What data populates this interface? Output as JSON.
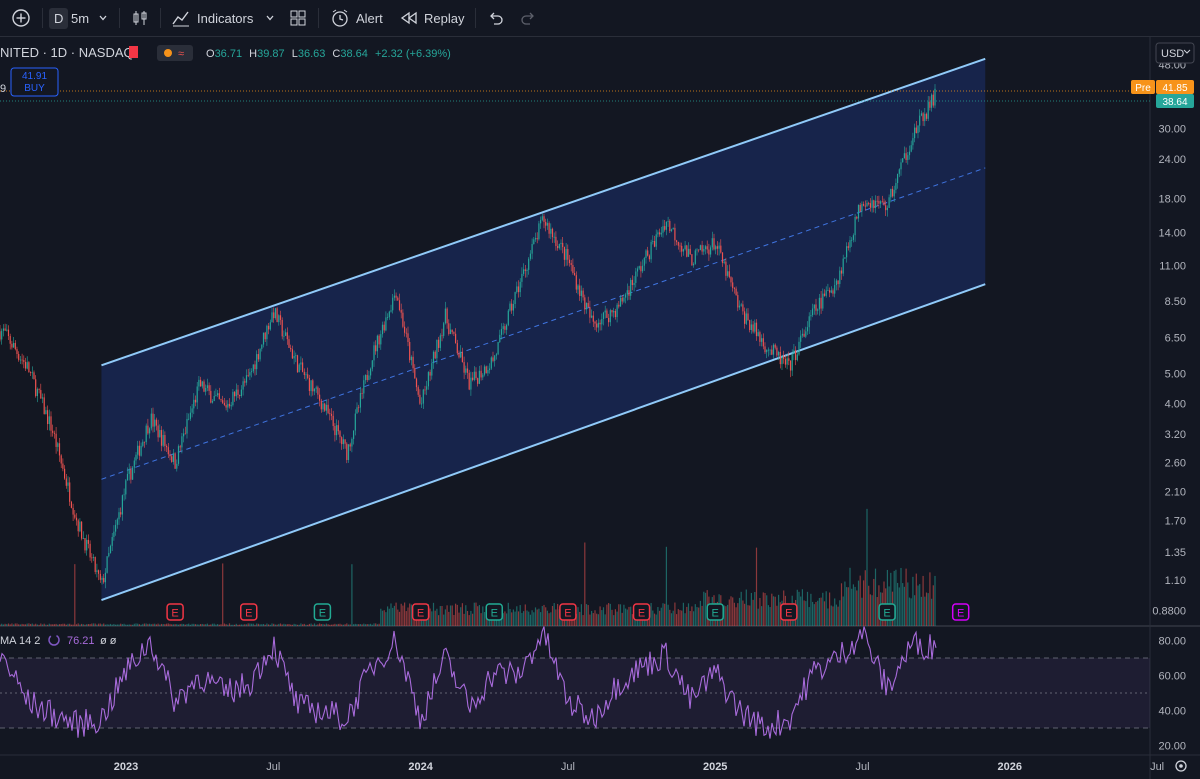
{
  "toolbar": {
    "interval_D": "D",
    "interval_5m": "5m",
    "indicators_label": "Indicators",
    "alert_label": "Alert",
    "replay_label": "Replay"
  },
  "legend": {
    "symbol": "NITED · 1D · NASDAQ",
    "open_label": "O",
    "open": "36.71",
    "high_label": "H",
    "high": "39.87",
    "low_label": "L",
    "low": "36.63",
    "close_label": "C",
    "close": "38.64",
    "change": "+2.32 (+6.39%)",
    "left_edge_char": "9"
  },
  "trade": {
    "price": "41.91",
    "label": "BUY"
  },
  "currency": "USD",
  "price_tags": {
    "pre_label": "Pre",
    "pre_price": "41.85",
    "last_price": "38.64"
  },
  "rsi_legend": {
    "name": "MA 14 2",
    "value": "76.21",
    "extra": "ø ø"
  },
  "colors": {
    "up": "#26a69a",
    "down": "#ef5350",
    "channel_line": "#90caf9",
    "channel_fill": "#1a2a5a",
    "rsi_line": "#a86bdb",
    "pre_tag": "#f7931a",
    "last_tag": "#26a69a",
    "earnings_red": "#f23645",
    "earnings_green": "#22ab94",
    "earnings_upcoming": "#d500f9"
  },
  "icons": [
    "plus-circle-icon",
    "chevron-down-icon",
    "candles-icon",
    "indicators-icon",
    "layout-grid-icon",
    "alert-clock-icon",
    "replay-icon",
    "undo-icon",
    "redo-icon",
    "settings-icon"
  ],
  "chart_data": {
    "type": "candlestick",
    "title": "",
    "y_scale": "log",
    "price_axis_ticks": [
      "48.00",
      "41.85",
      "38.64",
      "30.00",
      "24.00",
      "18.00",
      "14.00",
      "11.00",
      "8.50",
      "6.50",
      "5.00",
      "4.00",
      "3.20",
      "2.60",
      "2.10",
      "1.70",
      "1.35",
      "1.10",
      "0.8800"
    ],
    "x_ticks": [
      "2023",
      "Jul",
      "2024",
      "Jul",
      "2025",
      "Jul",
      "2026",
      "Jul"
    ],
    "ylim": [
      0.8,
      52
    ],
    "price_path": [
      {
        "date": "2022-08",
        "close": 6.8
      },
      {
        "date": "2022-09",
        "close": 5.2
      },
      {
        "date": "2022-10",
        "close": 3.3
      },
      {
        "date": "2022-11",
        "close": 1.7
      },
      {
        "date": "2022-12",
        "close": 1.05
      },
      {
        "date": "2023-01",
        "close": 2.2
      },
      {
        "date": "2023-02",
        "close": 3.6
      },
      {
        "date": "2023-03",
        "close": 2.6
      },
      {
        "date": "2023-04",
        "close": 4.6
      },
      {
        "date": "2023-05",
        "close": 3.9
      },
      {
        "date": "2023-06",
        "close": 4.8
      },
      {
        "date": "2023-07",
        "close": 7.9
      },
      {
        "date": "2023-08",
        "close": 5.3
      },
      {
        "date": "2023-09",
        "close": 4.0
      },
      {
        "date": "2023-10",
        "close": 2.8
      },
      {
        "date": "2023-11",
        "close": 5.6
      },
      {
        "date": "2023-12",
        "close": 9.2
      },
      {
        "date": "2024-01",
        "close": 3.9
      },
      {
        "date": "2024-02",
        "close": 7.6
      },
      {
        "date": "2024-03",
        "close": 4.6
      },
      {
        "date": "2024-04",
        "close": 5.6
      },
      {
        "date": "2024-05",
        "close": 9.5
      },
      {
        "date": "2024-06",
        "close": 15.5
      },
      {
        "date": "2024-07",
        "close": 11.5
      },
      {
        "date": "2024-08",
        "close": 7.2
      },
      {
        "date": "2024-09",
        "close": 8.0
      },
      {
        "date": "2024-10",
        "close": 11.0
      },
      {
        "date": "2024-11",
        "close": 15.3
      },
      {
        "date": "2024-12",
        "close": 11.5
      },
      {
        "date": "2025-01",
        "close": 13.0
      },
      {
        "date": "2025-02",
        "close": 8.0
      },
      {
        "date": "2025-03",
        "close": 6.2
      },
      {
        "date": "2025-04",
        "close": 5.2
      },
      {
        "date": "2025-05",
        "close": 7.8
      },
      {
        "date": "2025-06",
        "close": 10.0
      },
      {
        "date": "2025-07",
        "close": 18.0
      },
      {
        "date": "2025-08",
        "close": 17.0
      },
      {
        "date": "2025-09",
        "close": 28.0
      },
      {
        "date": "2025-10",
        "close": 38.64
      }
    ],
    "channel": {
      "lower": [
        {
          "date": "2022-12",
          "price": 0.95
        },
        {
          "date": "2025-12",
          "price": 9.6
        }
      ],
      "upper": [
        {
          "date": "2022-12",
          "price": 5.3
        },
        {
          "date": "2025-12",
          "price": 50.0
        }
      ],
      "mid": [
        {
          "date": "2022-12",
          "price": 2.3
        },
        {
          "date": "2025-12",
          "price": 22.5
        }
      ]
    },
    "earnings": [
      {
        "date": "2023-03",
        "type": "miss"
      },
      {
        "date": "2023-06",
        "type": "miss"
      },
      {
        "date": "2023-09",
        "type": "beat"
      },
      {
        "date": "2024-01",
        "type": "miss"
      },
      {
        "date": "2024-04",
        "type": "beat"
      },
      {
        "date": "2024-07",
        "type": "miss"
      },
      {
        "date": "2024-10",
        "type": "miss"
      },
      {
        "date": "2025-01",
        "type": "beat"
      },
      {
        "date": "2025-04",
        "type": "miss"
      },
      {
        "date": "2025-08",
        "type": "beat"
      },
      {
        "date": "2025-11",
        "type": "upcoming"
      }
    ],
    "rsi": {
      "ylim": [
        20,
        90
      ],
      "levels": [
        30,
        50,
        70
      ],
      "ticks": [
        "80.00",
        "60.00",
        "40.00",
        "20.00"
      ],
      "path": [
        {
          "date": "2022-08",
          "value": 70
        },
        {
          "date": "2022-09",
          "value": 45
        },
        {
          "date": "2022-10",
          "value": 38
        },
        {
          "date": "2022-11",
          "value": 32
        },
        {
          "date": "2022-12",
          "value": 35
        },
        {
          "date": "2023-01",
          "value": 62
        },
        {
          "date": "2023-02",
          "value": 80
        },
        {
          "date": "2023-03",
          "value": 45
        },
        {
          "date": "2023-04",
          "value": 60
        },
        {
          "date": "2023-05",
          "value": 50
        },
        {
          "date": "2023-06",
          "value": 55
        },
        {
          "date": "2023-07",
          "value": 78
        },
        {
          "date": "2023-08",
          "value": 42
        },
        {
          "date": "2023-09",
          "value": 40
        },
        {
          "date": "2023-10",
          "value": 35
        },
        {
          "date": "2023-11",
          "value": 65
        },
        {
          "date": "2023-12",
          "value": 80
        },
        {
          "date": "2024-01",
          "value": 35
        },
        {
          "date": "2024-02",
          "value": 70
        },
        {
          "date": "2024-03",
          "value": 42
        },
        {
          "date": "2024-04",
          "value": 62
        },
        {
          "date": "2024-05",
          "value": 60
        },
        {
          "date": "2024-06",
          "value": 85
        },
        {
          "date": "2024-07",
          "value": 45
        },
        {
          "date": "2024-08",
          "value": 35
        },
        {
          "date": "2024-09",
          "value": 55
        },
        {
          "date": "2024-10",
          "value": 65
        },
        {
          "date": "2024-11",
          "value": 72
        },
        {
          "date": "2024-12",
          "value": 45
        },
        {
          "date": "2025-01",
          "value": 62
        },
        {
          "date": "2025-02",
          "value": 40
        },
        {
          "date": "2025-03",
          "value": 30
        },
        {
          "date": "2025-04",
          "value": 35
        },
        {
          "date": "2025-05",
          "value": 62
        },
        {
          "date": "2025-06",
          "value": 70
        },
        {
          "date": "2025-07",
          "value": 85
        },
        {
          "date": "2025-08",
          "value": 52
        },
        {
          "date": "2025-09",
          "value": 78
        },
        {
          "date": "2025-10",
          "value": 76.21
        }
      ]
    }
  }
}
